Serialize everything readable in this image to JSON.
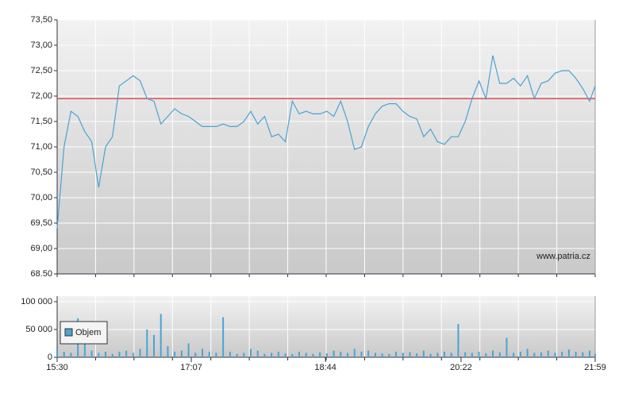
{
  "chart_data": [
    {
      "type": "line",
      "color": "#4aa3d1",
      "x": [
        "15:30",
        "15:35",
        "15:40",
        "15:45",
        "15:50",
        "15:55",
        "16:00",
        "16:05",
        "16:10",
        "16:15",
        "16:20",
        "16:25",
        "16:30",
        "16:35",
        "16:40",
        "16:45",
        "16:50",
        "16:55",
        "17:00",
        "17:05",
        "17:10",
        "17:15",
        "17:20",
        "17:25",
        "17:30",
        "17:35",
        "17:40",
        "17:45",
        "17:50",
        "17:55",
        "18:00",
        "18:05",
        "18:10",
        "18:15",
        "18:20",
        "18:25",
        "18:30",
        "18:35",
        "18:40",
        "18:45",
        "18:50",
        "18:55",
        "19:00",
        "19:05",
        "19:10",
        "19:15",
        "19:20",
        "19:25",
        "19:30",
        "19:35",
        "19:40",
        "19:45",
        "19:50",
        "19:55",
        "20:00",
        "20:05",
        "20:10",
        "20:15",
        "20:20",
        "20:25",
        "20:30",
        "20:35",
        "20:40",
        "20:45",
        "20:50",
        "20:55",
        "21:00",
        "21:05",
        "21:10",
        "21:15",
        "21:20",
        "21:25",
        "21:30",
        "21:35",
        "21:40",
        "21:45",
        "21:50",
        "21:55",
        "21:59"
      ],
      "values": [
        69.4,
        71.0,
        71.7,
        71.6,
        71.3,
        71.1,
        70.2,
        71.0,
        71.2,
        72.2,
        72.3,
        72.4,
        72.3,
        71.95,
        71.9,
        71.45,
        71.6,
        71.75,
        71.65,
        71.6,
        71.5,
        71.4,
        71.4,
        71.4,
        71.45,
        71.4,
        71.4,
        71.5,
        71.7,
        71.45,
        71.6,
        71.2,
        71.25,
        71.1,
        71.9,
        71.65,
        71.7,
        71.65,
        71.65,
        71.7,
        71.6,
        71.9,
        71.5,
        70.95,
        71.0,
        71.4,
        71.65,
        71.8,
        71.85,
        71.85,
        71.7,
        71.6,
        71.55,
        71.2,
        71.35,
        71.1,
        71.05,
        71.2,
        71.2,
        71.5,
        71.95,
        72.3,
        71.95,
        72.8,
        72.25,
        72.25,
        72.35,
        72.2,
        72.4,
        71.95,
        72.25,
        72.3,
        72.45,
        72.5,
        72.5,
        72.35,
        72.15,
        71.9,
        72.2
      ],
      "reference_line": 71.95,
      "reference_color": "#e05050",
      "xlim": [
        "15:30",
        "21:59"
      ],
      "ylim": [
        68.5,
        73.5
      ],
      "yticks": [
        {
          "value": 73.5,
          "label": "73,50"
        },
        {
          "value": 73,
          "label": "73,00"
        },
        {
          "value": 72.5,
          "label": "72,50"
        },
        {
          "value": 72,
          "label": "72,00"
        },
        {
          "value": 71.5,
          "label": "71,50"
        },
        {
          "value": 71,
          "label": "71,00"
        },
        {
          "value": 70.5,
          "label": "70,50"
        },
        {
          "value": 70,
          "label": "70,00"
        },
        {
          "value": 69.5,
          "label": "69,50"
        },
        {
          "value": 69,
          "label": "69,00"
        },
        {
          "value": 68.5,
          "label": "68.50"
        }
      ],
      "grid": true,
      "annotation": "www.patria.cz"
    },
    {
      "type": "bar",
      "x": [
        "15:30",
        "15:35",
        "15:40",
        "15:45",
        "15:50",
        "15:55",
        "16:00",
        "16:05",
        "16:10",
        "16:15",
        "16:20",
        "16:25",
        "16:30",
        "16:35",
        "16:40",
        "16:45",
        "16:50",
        "16:55",
        "17:00",
        "17:05",
        "17:10",
        "17:15",
        "17:20",
        "17:25",
        "17:30",
        "17:35",
        "17:40",
        "17:45",
        "17:50",
        "17:55",
        "18:00",
        "18:05",
        "18:10",
        "18:15",
        "18:20",
        "18:25",
        "18:30",
        "18:35",
        "18:40",
        "18:45",
        "18:50",
        "18:55",
        "19:00",
        "19:05",
        "19:10",
        "19:15",
        "19:20",
        "19:25",
        "19:30",
        "19:35",
        "19:40",
        "19:45",
        "19:50",
        "19:55",
        "20:00",
        "20:05",
        "20:10",
        "20:15",
        "20:20",
        "20:25",
        "20:30",
        "20:35",
        "20:40",
        "20:45",
        "20:50",
        "20:55",
        "21:00",
        "21:05",
        "21:10",
        "21:15",
        "21:20",
        "21:25",
        "21:30",
        "21:35",
        "21:40",
        "21:45",
        "21:50",
        "21:55",
        "21:59"
      ],
      "series": [
        {
          "name": "Objem",
          "color": "#4aa3d1",
          "values": [
            15000,
            10000,
            8000,
            70000,
            45000,
            12000,
            8000,
            10000,
            6000,
            10000,
            12000,
            8000,
            15000,
            50000,
            40000,
            78000,
            20000,
            10000,
            12000,
            25000,
            8000,
            15000,
            10000,
            8000,
            72000,
            10000,
            6000,
            8000,
            15000,
            12000,
            6000,
            8000,
            10000,
            7000,
            6000,
            10000,
            8000,
            6000,
            9000,
            7000,
            12000,
            10000,
            8000,
            15000,
            10000,
            12000,
            8000,
            7000,
            6000,
            10000,
            8000,
            9000,
            7000,
            12000,
            6000,
            8000,
            10000,
            8000,
            60000,
            9000,
            8000,
            10000,
            7000,
            12000,
            9000,
            35000,
            8000,
            10000,
            15000,
            8000,
            9000,
            12000,
            8000,
            10000,
            14000,
            10000,
            9000,
            12000,
            6000
          ]
        }
      ],
      "xlim": [
        "15:30",
        "21:59"
      ],
      "xticks": [
        "15:30",
        "17:07",
        "18:44",
        "20:22",
        "21:59"
      ],
      "ylim": [
        0,
        110000
      ],
      "yticks": [
        0,
        {
          "value": 50000,
          "label": "50 000"
        },
        {
          "value": 100000,
          "label": "100 000"
        }
      ],
      "grid": true
    }
  ]
}
